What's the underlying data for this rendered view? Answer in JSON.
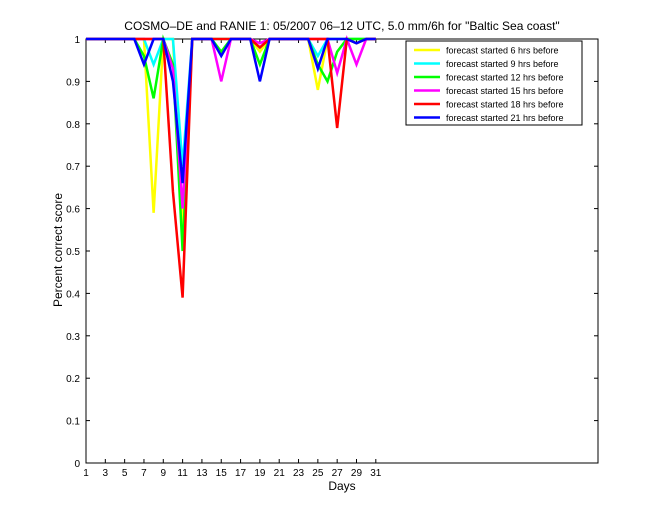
{
  "chart_data": {
    "type": "line",
    "title": "COSMO–DE and RANIE 1: 05/2007 06–12 UTC, 5.0 mm/6h for \"Baltic Sea coast\"",
    "xlabel": "Days",
    "ylabel": "Percent correct score",
    "xlim": [
      1,
      54
    ],
    "ylim": [
      0,
      1
    ],
    "xticks": [
      1,
      3,
      5,
      7,
      9,
      11,
      13,
      15,
      17,
      19,
      21,
      23,
      25,
      27,
      29,
      31
    ],
    "yticks": [
      0,
      0.1,
      0.2,
      0.3,
      0.4,
      0.5,
      0.6,
      0.7,
      0.8,
      0.9,
      1
    ],
    "legend_position": "top-right",
    "x": [
      1,
      2,
      3,
      4,
      5,
      6,
      7,
      8,
      9,
      10,
      11,
      12,
      13,
      14,
      15,
      16,
      17,
      18,
      19,
      20,
      21,
      22,
      23,
      24,
      25,
      26,
      27,
      28,
      29,
      30,
      31
    ],
    "series": [
      {
        "name": "forecast started 6 hrs before",
        "color": "#ffff00",
        "values": [
          1,
          1,
          1,
          1,
          1,
          1,
          1,
          0.59,
          1,
          1,
          0.56,
          1,
          1,
          1,
          1,
          1,
          1,
          1,
          0.97,
          1,
          1,
          1,
          1,
          1,
          0.88,
          1,
          1,
          1,
          1,
          1,
          1
        ]
      },
      {
        "name": "forecast started 9 hrs before",
        "color": "#00ffff",
        "values": [
          1,
          1,
          1,
          1,
          1,
          1,
          1,
          0.94,
          1,
          1,
          0.7,
          1,
          1,
          1,
          1,
          1,
          1,
          1,
          0.98,
          1,
          1,
          1,
          1,
          1,
          0.96,
          1,
          1,
          1,
          1,
          1,
          1
        ]
      },
      {
        "name": "forecast started 12 hrs before",
        "color": "#00ff00",
        "values": [
          1,
          1,
          1,
          1,
          1,
          1,
          0.96,
          0.86,
          1,
          0.94,
          0.5,
          1,
          1,
          1,
          0.97,
          1,
          1,
          1,
          0.94,
          1,
          1,
          1,
          1,
          1,
          0.94,
          0.9,
          0.97,
          1,
          1,
          1,
          1
        ]
      },
      {
        "name": "forecast started 15 hrs before",
        "color": "#ff00ff",
        "values": [
          1,
          1,
          1,
          1,
          1,
          1,
          1,
          1,
          1,
          0.93,
          0.6,
          1,
          1,
          1,
          0.9,
          1,
          1,
          1,
          0.99,
          1,
          1,
          1,
          1,
          1,
          1,
          1,
          0.92,
          1,
          0.94,
          1,
          1
        ]
      },
      {
        "name": "forecast started 18 hrs before",
        "color": "#ff0000",
        "values": [
          1,
          1,
          1,
          1,
          1,
          1,
          1,
          1,
          1,
          0.64,
          0.39,
          1,
          1,
          1,
          1,
          1,
          1,
          1,
          0.98,
          1,
          1,
          1,
          1,
          1,
          1,
          1,
          0.79,
          1,
          0.99,
          1,
          1
        ]
      },
      {
        "name": "forecast started 21 hrs before",
        "color": "#0000ff",
        "values": [
          1,
          1,
          1,
          1,
          1,
          1,
          0.94,
          1,
          1,
          0.9,
          0.66,
          1,
          1,
          1,
          0.96,
          1,
          1,
          1,
          0.9,
          1,
          1,
          1,
          1,
          1,
          0.93,
          1,
          1,
          1,
          0.99,
          1,
          1
        ]
      }
    ]
  }
}
